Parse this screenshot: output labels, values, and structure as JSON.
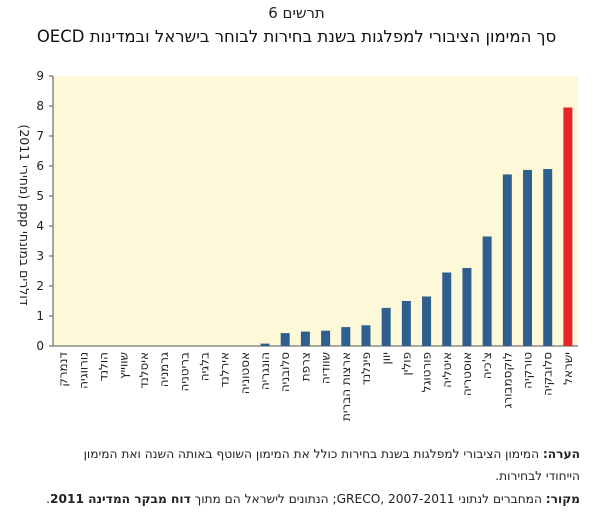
{
  "figure_label": "תרשים 6",
  "chart_data": {
    "type": "bar",
    "title": "סך המימון הציבורי למפלגות בשנת בחירות לבוחר בישראל ובמדינות OECD",
    "ylabel": "דולרים במונחי ppp (מחירי 2011)",
    "xlabel": "",
    "ylim": [
      0,
      9
    ],
    "yticks": [
      0,
      1,
      2,
      3,
      4,
      5,
      6,
      7,
      8,
      9
    ],
    "grid": false,
    "background_color": "#fdf8d8",
    "bar_color": "#2e5f8f",
    "highlight_color": "#e8242b",
    "highlight_category": "ישראל",
    "categories": [
      "דנמרק",
      "נורווגיה",
      "הולנד",
      "שווייץ",
      "איסלנד",
      "גרמניה",
      "בריטניה",
      "בלגיה",
      "אירלנד",
      "אסטוניה",
      "הונגריה",
      "סלובניה",
      "צרפת",
      "שוודיה",
      "ארצות הברית",
      "פינלנד",
      "יוון",
      "פולין",
      "פורטוגל",
      "איטליה",
      "אוסטריה",
      "צ'כיה",
      "לוקסמבורג",
      "טורקיה",
      "סלובקיה",
      "ישראל"
    ],
    "values": [
      0,
      0,
      0,
      0,
      0,
      0,
      0,
      0,
      0,
      0,
      0.08,
      0.43,
      0.48,
      0.51,
      0.63,
      0.69,
      1.27,
      1.5,
      1.65,
      2.45,
      2.6,
      3.65,
      5.72,
      5.87,
      5.9,
      7.95
    ]
  },
  "note": {
    "label": "הערה:",
    "text": " המימון הציבורי למפלגות בשנת בחירות כולל את המימון השוטף באותה השנה ואת המימון",
    "text2": "הייחודי לבחירות."
  },
  "source": {
    "label": "מקור:",
    "text": " המחברים לנתוני GRECO, 2007-2011; הנתונים לישראל הם מתוך ",
    "bold": "דוח מבקר המדינה 2011",
    "end": "."
  }
}
